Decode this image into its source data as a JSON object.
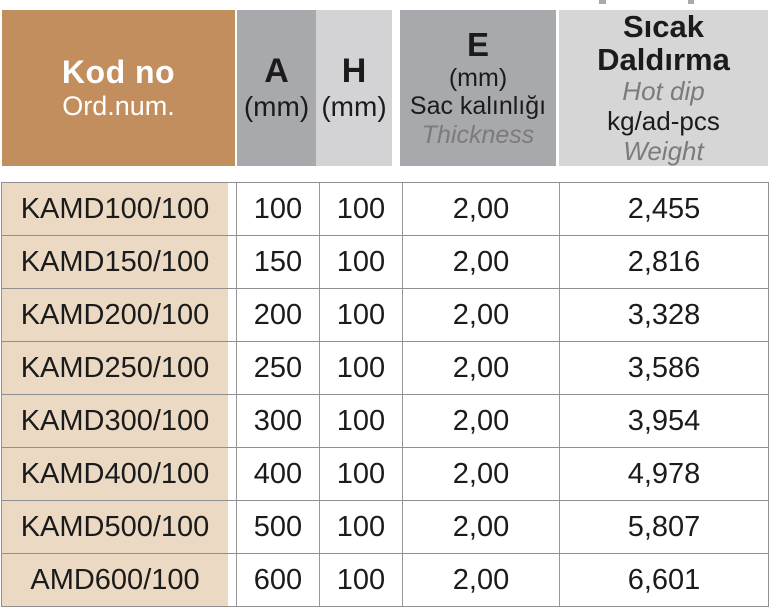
{
  "header": {
    "kod": {
      "title": "Kod no",
      "subtitle": "Ord.num."
    },
    "a": {
      "title": "A",
      "unit": "(mm)"
    },
    "h": {
      "title": "H",
      "unit": "(mm)"
    },
    "e": {
      "title": "E",
      "unit": "(mm)",
      "desc_tr": "Sac kalınlığı",
      "desc_en": "Thickness"
    },
    "w": {
      "title_tr_line1": "Sıcak",
      "title_tr_line2": "Daldırma",
      "desc_en": "Hot dip",
      "unit": "kg/ad-pcs",
      "label_en": "Weight"
    }
  },
  "rows": [
    {
      "kod": "KAMD100/100",
      "a": "100",
      "h": "100",
      "e": "2,00",
      "w": "2,455"
    },
    {
      "kod": "KAMD150/100",
      "a": "150",
      "h": "100",
      "e": "2,00",
      "w": "2,816"
    },
    {
      "kod": "KAMD200/100",
      "a": "200",
      "h": "100",
      "e": "2,00",
      "w": "3,328"
    },
    {
      "kod": "KAMD250/100",
      "a": "250",
      "h": "100",
      "e": "2,00",
      "w": "3,586"
    },
    {
      "kod": "KAMD300/100",
      "a": "300",
      "h": "100",
      "e": "2,00",
      "w": "3,954"
    },
    {
      "kod": "KAMD400/100",
      "a": "400",
      "h": "100",
      "e": "2,00",
      "w": "4,978"
    },
    {
      "kod": "KAMD500/100",
      "a": "500",
      "h": "100",
      "e": "2,00",
      "w": "5,807"
    },
    {
      "kod": "AMD600/100",
      "a": "600",
      "h": "100",
      "e": "2,00",
      "w": "6,601"
    }
  ],
  "colors": {
    "header_kod_bg": "#C38E5E",
    "header_kod_text": "#FFFFFF",
    "header_gray_dark": "#A8A9AC",
    "header_gray_light_h": "#D3D3D5",
    "header_gray_light_w": "#D6D6D7",
    "row_kod_bg": "#EBD9C4",
    "grid_line": "#8F8F8F",
    "text_primary": "#1B1B1B",
    "text_italic_secondary": "#7B7B7B"
  }
}
